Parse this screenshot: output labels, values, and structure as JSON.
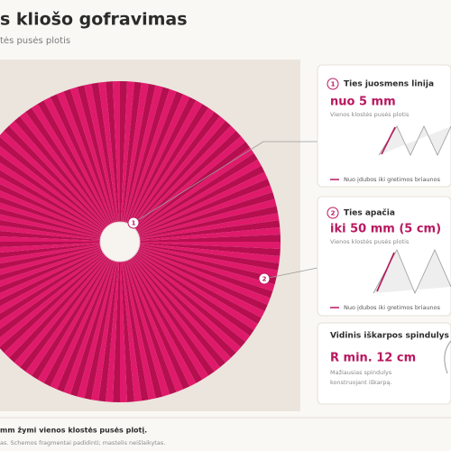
{
  "header": {
    "title": "s kliošo gofravimas",
    "subtitle": "tės pusės plotis"
  },
  "markers": [
    "1",
    "2"
  ],
  "cards": [
    {
      "number": "1",
      "title": "Ties juosmens linija",
      "value": "nuo 5 mm",
      "caption": "Vienos klostės pusės plotis",
      "legend": "Nuo įdubos iki gretimos briaunos"
    },
    {
      "number": "2",
      "title": "Ties apačia",
      "value": "iki 50 mm (5 cm)",
      "caption": "Vienos klostės pusės plotis",
      "legend": "Nuo įdubos iki gretimos briaunos"
    },
    {
      "title": "Vidinis iškarpos spindulys",
      "value": "R min. 12 cm",
      "caption_lines": [
        "Mažiausias spindulys",
        "konstruojant iškarpą."
      ]
    }
  ],
  "footer": {
    "note": "mm žymi vienos klostės pusės plotį.",
    "scale_note": "as. Schemos fragmentai padidinti; mastelis neišlaikytas."
  }
}
